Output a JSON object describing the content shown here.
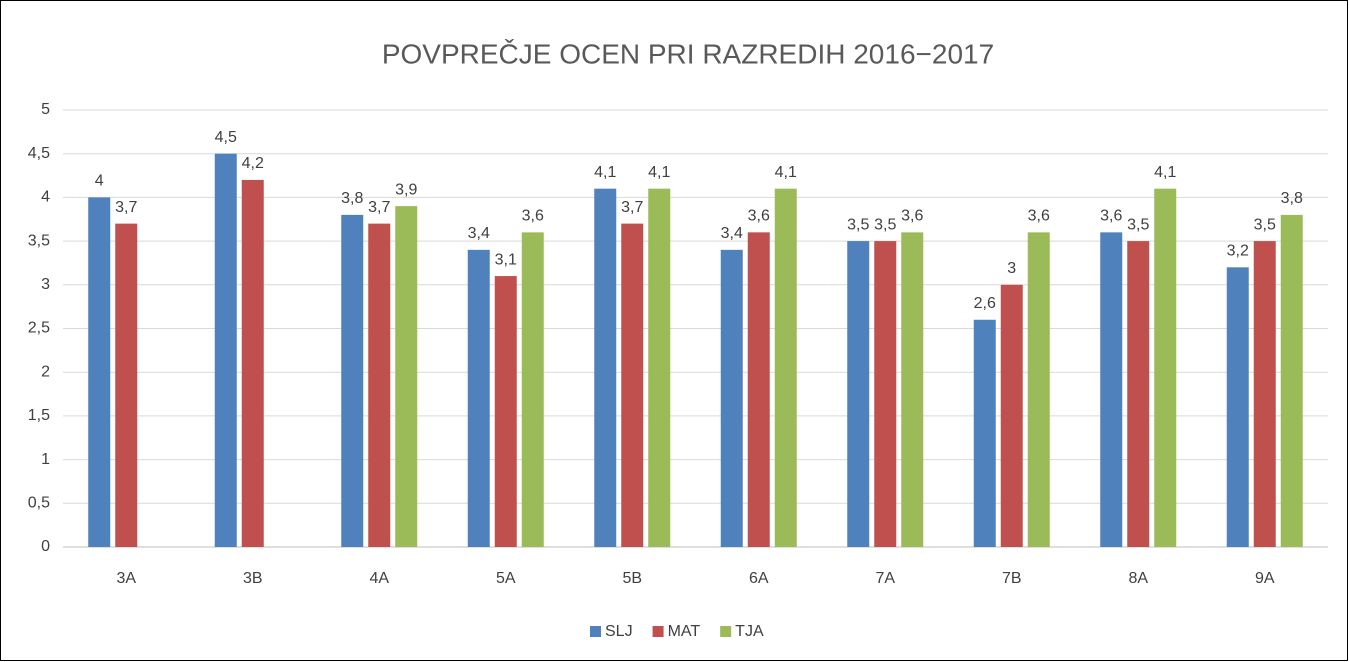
{
  "chart_data": {
    "type": "bar",
    "title": "POVPREČJE OCEN PRI RAZREDIH 2016−2017",
    "categories": [
      "3A",
      "3B",
      "4A",
      "5A",
      "5B",
      "6A",
      "7A",
      "7B",
      "8A",
      "9A"
    ],
    "series": [
      {
        "name": "SLJ",
        "color": "#4f81bd",
        "values": [
          4,
          4.5,
          3.8,
          3.4,
          4.1,
          3.4,
          3.5,
          2.6,
          3.6,
          3.2
        ],
        "value_labels": [
          "4",
          "4,5",
          "3,8",
          "3,4",
          "4,1",
          "3,4",
          "3,5",
          "2,6",
          "3,6",
          "3,2"
        ]
      },
      {
        "name": "MAT",
        "color": "#c0504d",
        "values": [
          3.7,
          4.2,
          3.7,
          3.1,
          3.7,
          3.6,
          3.5,
          3,
          3.5,
          3.5
        ],
        "value_labels": [
          "3,7",
          "4,2",
          "3,7",
          "3,1",
          "3,7",
          "3,6",
          "3,5",
          "3",
          "3,5",
          "3,5"
        ]
      },
      {
        "name": "TJA",
        "color": "#9bbb59",
        "values": [
          null,
          null,
          3.9,
          3.6,
          4.1,
          4.1,
          3.6,
          3.6,
          4.1,
          3.8
        ],
        "value_labels": [
          null,
          null,
          "3,9",
          "3,6",
          "4,1",
          "4,1",
          "3,6",
          "3,6",
          "4,1",
          "3,8"
        ]
      }
    ],
    "ylim": [
      0,
      5
    ],
    "yticks": [
      0,
      {
        "value": 0.5,
        "label": "0,5"
      },
      1,
      {
        "value": 1.5,
        "label": "1,5"
      },
      2,
      {
        "value": 2.5,
        "label": "2,5"
      },
      3,
      {
        "value": 3.5,
        "label": "3,5"
      },
      4,
      {
        "value": 4.5,
        "label": "4,5"
      },
      5
    ],
    "grid": true,
    "legend": "bottom"
  }
}
